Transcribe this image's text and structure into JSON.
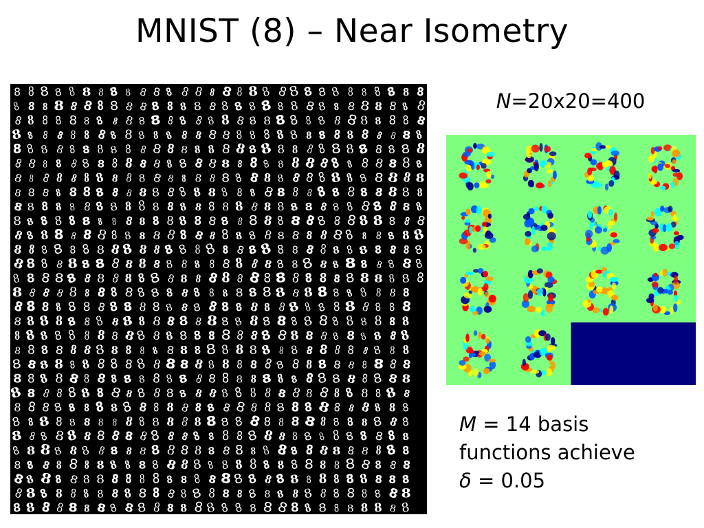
{
  "slide": {
    "title": "MNIST (8) – Near Isometry",
    "n_label": {
      "var": "N",
      "expr": "=20x20=400"
    },
    "m_label": {
      "var": "M",
      "line1_rest": " = 14 basis",
      "line2": "functions achieve",
      "delta_symbol": "δ",
      "line3_rest": " = 0.05"
    }
  },
  "digits_grid": {
    "rows": 30,
    "cols": 30,
    "digit": "8",
    "background": "#000000",
    "foreground": "#ffffff"
  },
  "basis_grid": {
    "rows": 4,
    "cols": 4,
    "count": 14,
    "background": "#7fff7f",
    "empty_fill": "#00007f",
    "colors": {
      "red": "#ff0000",
      "orange": "#ff9900",
      "yellow": "#ffff00",
      "cyan": "#00ffff",
      "blue": "#0055ff",
      "navy": "#000090"
    }
  }
}
